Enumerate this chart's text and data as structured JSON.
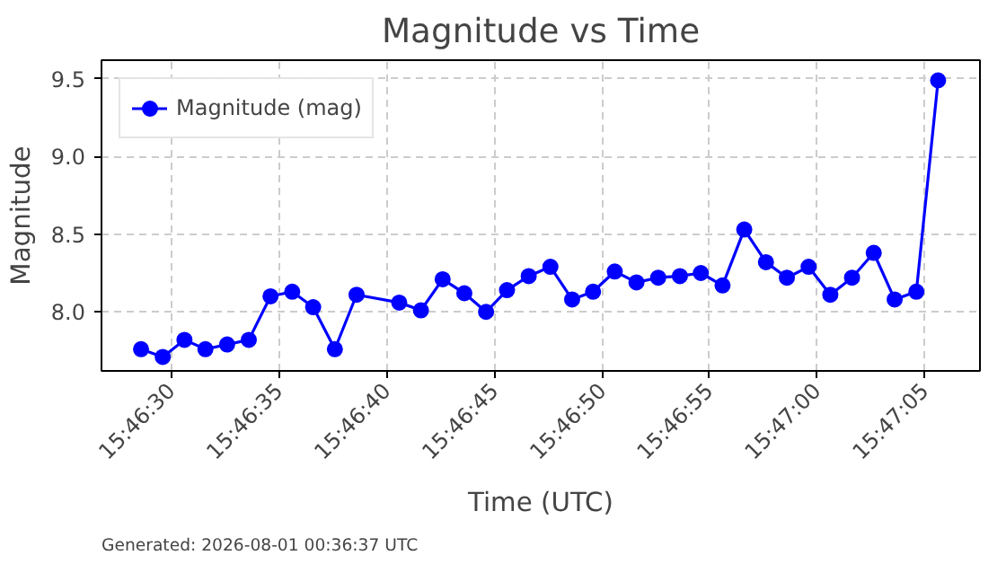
{
  "chart_data": {
    "type": "line",
    "title": "Magnitude vs Time",
    "xlabel": "Time (UTC)",
    "ylabel": "Magnitude",
    "x": [
      15.77461,
      15.77489,
      15.77517,
      15.77544,
      15.77572,
      15.776,
      15.77628,
      15.77656,
      15.77683,
      15.77711,
      15.77739,
      15.77794,
      15.77822,
      15.7785,
      15.77878,
      15.77906,
      15.77933,
      15.77961,
      15.77989,
      15.78017,
      15.78044,
      15.78072,
      15.781,
      15.78128,
      15.78156,
      15.78183,
      15.78211,
      15.78239,
      15.78267,
      15.78294,
      15.78322,
      15.7835,
      15.78378,
      15.78406,
      15.78433,
      15.78461,
      15.78489
    ],
    "series": [
      {
        "name": "Magnitude (mag)",
        "color": "#0000ff",
        "values": [
          7.76,
          7.71,
          7.82,
          7.76,
          7.79,
          7.82,
          8.1,
          8.13,
          8.03,
          7.76,
          8.11,
          8.06,
          8.01,
          8.21,
          8.12,
          8.0,
          8.14,
          8.23,
          8.29,
          8.08,
          8.13,
          8.26,
          8.19,
          8.22,
          8.23,
          8.25,
          8.17,
          8.53,
          8.32,
          8.22,
          8.29,
          8.11,
          8.22,
          8.38,
          8.08,
          8.13,
          9.49
        ]
      }
    ],
    "xlim": [
      15.7741,
      15.78543
    ],
    "ylim": [
      7.62,
      9.62
    ],
    "xticks": [
      {
        "value": 15.775,
        "label": "15:46:30"
      },
      {
        "value": 15.77639,
        "label": "15:46:35"
      },
      {
        "value": 15.77778,
        "label": "15:46:40"
      },
      {
        "value": 15.77917,
        "label": "15:46:45"
      },
      {
        "value": 15.78056,
        "label": "15:46:50"
      },
      {
        "value": 15.78194,
        "label": "15:46:55"
      },
      {
        "value": 15.78333,
        "label": "15:47:00"
      },
      {
        "value": 15.78472,
        "label": "15:47:05"
      }
    ],
    "yticks": [
      {
        "value": 8.0,
        "label": "8.0"
      },
      {
        "value": 8.5,
        "label": "8.5"
      },
      {
        "value": 9.0,
        "label": "9.0"
      },
      {
        "value": 9.5,
        "label": "9.5"
      }
    ],
    "grid": true,
    "legend": "top left",
    "marker": "circle",
    "line_style": "solid",
    "annotations": [
      "Generated: 2026-08-01 00:36:37 UTC"
    ]
  }
}
